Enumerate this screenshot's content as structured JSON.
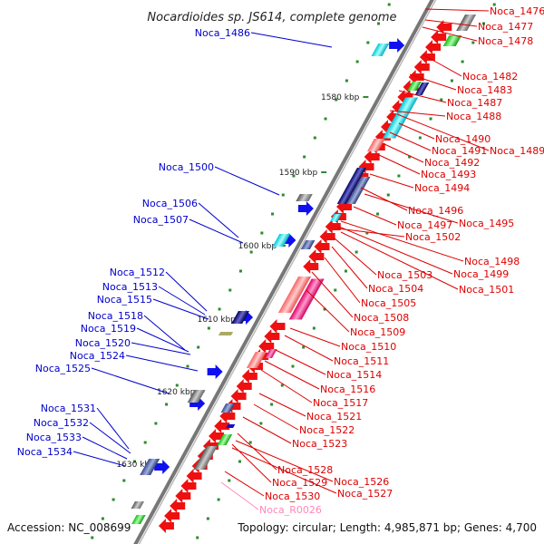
{
  "title": "Nocardioides sp. JS614, complete genome",
  "accession": "Accession: NC_008699",
  "topology": "Topology: circular; Length: 4,985,871 bp; Genes: 4,700",
  "colors": {
    "backbone": "#8c8c8c",
    "tick": "#2e8b2e",
    "forward_label": "#0000cc",
    "reverse_label": "#dd0000",
    "rna_label": "#ff88bb",
    "forward_gene": "#1010ee",
    "reverse_gene": "#ee1010"
  },
  "kbp_ticks": [
    "1580 kbp",
    "1590 kbp",
    "1600 kbp",
    "1610 kbp",
    "1620 kbp",
    "1630 kbp"
  ],
  "forward_labels": [
    "Noca_1486",
    "Noca_1500",
    "Noca_1506",
    "Noca_1507",
    "Noca_1512",
    "Noca_1513",
    "Noca_1515",
    "Noca_1518",
    "Noca_1519",
    "Noca_1520",
    "Noca_1524",
    "Noca_1525",
    "Noca_1531",
    "Noca_1532",
    "Noca_1533",
    "Noca_1534"
  ],
  "reverse_labels": [
    "Noca_1476",
    "Noca_1477",
    "Noca_1478",
    "Noca_1482",
    "Noca_1483",
    "Noca_1487",
    "Noca_1488",
    "Noca_1490",
    "Noca_1491",
    "Noca_1489",
    "Noca_1492",
    "Noca_1493",
    "Noca_1494",
    "Noca_1496",
    "Noca_1497",
    "Noca_1495",
    "Noca_1502",
    "Noca_1498",
    "Noca_1499",
    "Noca_1503",
    "Noca_1501",
    "Noca_1504",
    "Noca_1505",
    "Noca_1508",
    "Noca_1509",
    "Noca_1510",
    "Noca_1511",
    "Noca_1514",
    "Noca_1516",
    "Noca_1517",
    "Noca_1521",
    "Noca_1522",
    "Noca_1523",
    "Noca_1528",
    "Noca_1526",
    "Noca_1529",
    "Noca_1527",
    "Noca_1530"
  ],
  "rna_labels": [
    "Noca_R0026"
  ]
}
